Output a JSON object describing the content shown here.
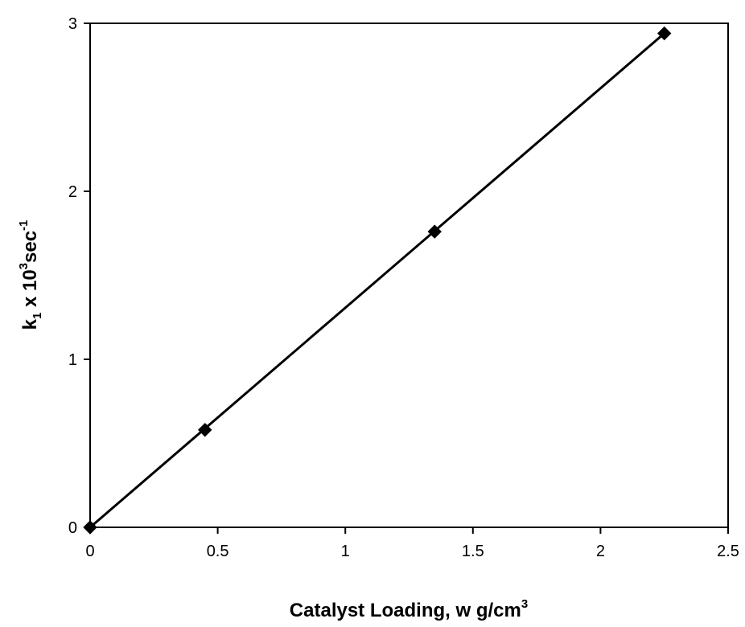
{
  "chart_data": {
    "type": "scatter",
    "title": "",
    "xlabel": {
      "main": "Catalyst Loading, w g/cm",
      "sup": "3"
    },
    "ylabel": {
      "part1": "k",
      "sub": "1",
      "part2": " x 10",
      "sup1": "3",
      "part3": "sec",
      "sup2": "-1"
    },
    "xlim": [
      0,
      2.5
    ],
    "ylim": [
      0,
      3
    ],
    "xticks": [
      "0",
      "0.5",
      "1",
      "1.5",
      "2",
      "2.5"
    ],
    "yticks": [
      "0",
      "1",
      "2",
      "3"
    ],
    "grid": false,
    "legend": "none",
    "series": [
      {
        "x": [
          0,
          0.45,
          1.35,
          2.25
        ],
        "y": [
          0,
          0.58,
          1.76,
          2.94
        ],
        "marker": "diamond",
        "color": "#000000"
      }
    ],
    "trendline": {
      "x": [
        0,
        2.25
      ],
      "y": [
        0,
        2.94
      ],
      "color": "#000000"
    }
  }
}
